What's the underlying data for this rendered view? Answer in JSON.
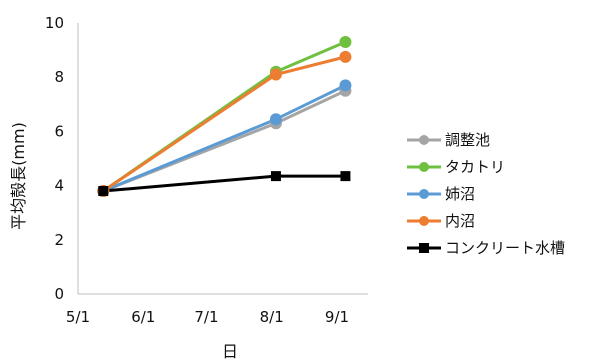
{
  "chart_data": {
    "type": "line",
    "xlabel": "日",
    "ylabel": "平均殻長(mm)",
    "x_ticks": [
      "5/1",
      "6/1",
      "7/1",
      "8/1",
      "9/1"
    ],
    "y_ticks": [
      "0",
      "2",
      "4",
      "6",
      "8",
      "10"
    ],
    "xlim": [
      "5/1",
      "9/1"
    ],
    "ylim": [
      0,
      10
    ],
    "grid": false,
    "legend_position": "right",
    "x": [
      "5/13",
      "8/3",
      "9/5"
    ],
    "series": [
      {
        "name": "調整池",
        "color": "#a5a5a5",
        "marker": "circle",
        "values": [
          3.8,
          6.3,
          7.5
        ]
      },
      {
        "name": "タカトリ",
        "color": "#70c040",
        "marker": "circle",
        "values": [
          3.8,
          8.2,
          9.3
        ]
      },
      {
        "name": "姉沼",
        "color": "#5b9bd5",
        "marker": "circle",
        "values": [
          3.8,
          6.45,
          7.7
        ]
      },
      {
        "name": "内沼",
        "color": "#ed7d31",
        "marker": "circle",
        "values": [
          3.8,
          8.1,
          8.75
        ]
      },
      {
        "name": "コンクリート水槽",
        "color": "#000000",
        "marker": "square",
        "values": [
          3.8,
          4.35,
          4.35
        ]
      }
    ]
  }
}
